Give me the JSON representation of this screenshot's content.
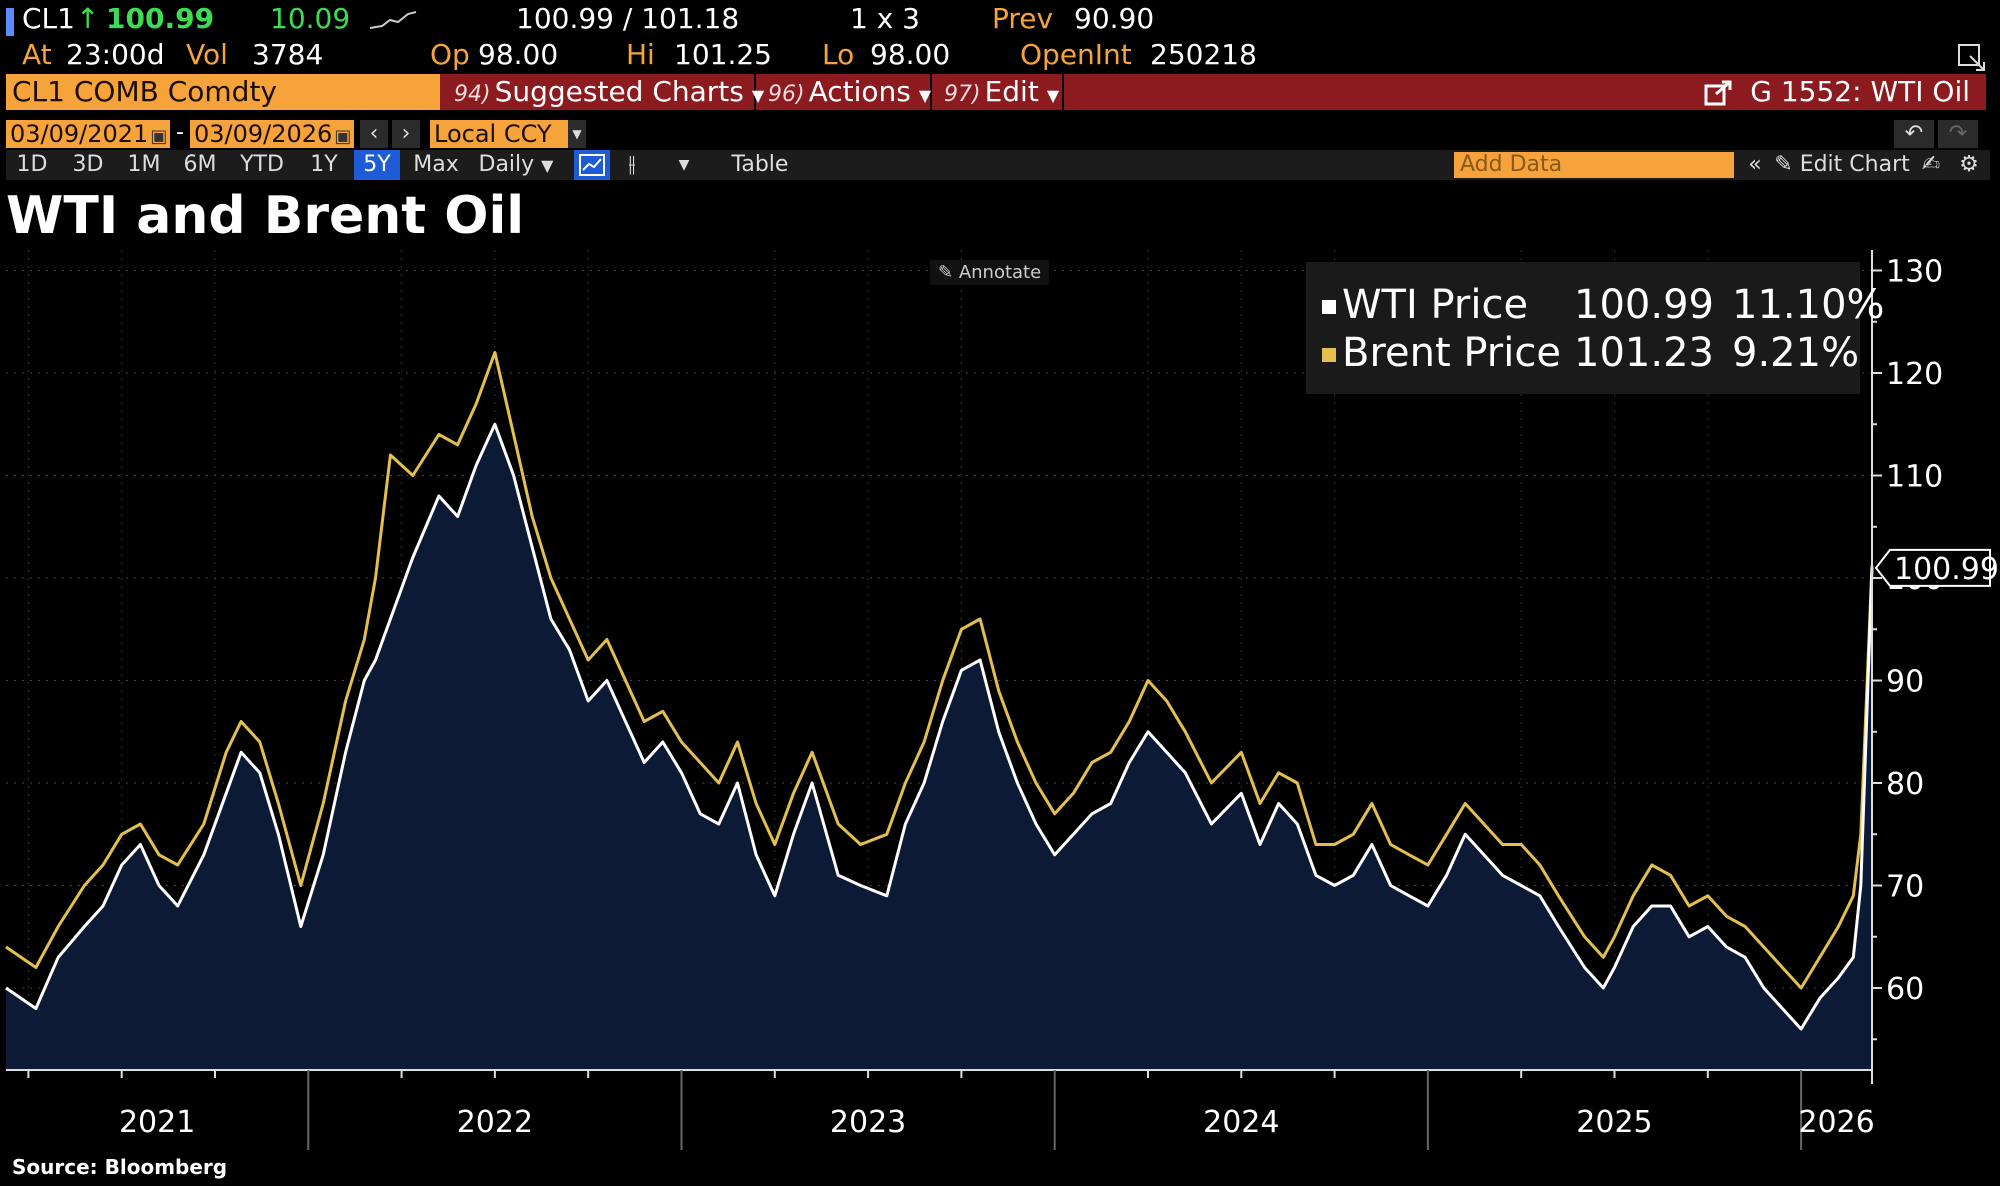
{
  "quote": {
    "ticker": "CL1",
    "arrow": "↑",
    "last": "100.99",
    "change": "10.09",
    "bid_ask": "100.99 / 101.18",
    "size": "1 x 3",
    "prev_label": "Prev",
    "prev": "90.90",
    "at_label": "At",
    "at_time": "23:00d",
    "vol_label": "Vol",
    "vol": "3784",
    "op_label": "Op",
    "op": "98.00",
    "hi_label": "Hi",
    "hi": "101.25",
    "lo_label": "Lo",
    "lo": "98.00",
    "oi_label": "OpenInt",
    "oi": "250218"
  },
  "cmdbar": {
    "security": "CL1 COMB Comdty",
    "menus": [
      {
        "num": "94)",
        "label": "Suggested Charts"
      },
      {
        "num": "96)",
        "label": "Actions"
      },
      {
        "num": "97)",
        "label": "Edit"
      }
    ],
    "chart_id": "G 1552: WTI Oil"
  },
  "dates": {
    "start": "03/09/2021",
    "end": "03/09/2026",
    "currency": "Local CCY"
  },
  "periods": [
    "1D",
    "3D",
    "1M",
    "6M",
    "YTD",
    "1Y",
    "5Y",
    "Max"
  ],
  "active_period": "5Y",
  "frequency": "Daily",
  "table_label": "Table",
  "add_data_placeholder": "Add Data",
  "edit_chart_label": "Edit Chart",
  "annotate_label": "Annotate",
  "colors": {
    "wti": "#ffffff",
    "brent": "#e3c04d",
    "area": "#0c1a36",
    "accent": "#f5a33a"
  },
  "chart_data": {
    "type": "line",
    "title": "WTI and Brent Oil",
    "source": "Source: Bloomberg",
    "xlabel": "",
    "ylabel": "",
    "ylim": [
      52,
      132
    ],
    "xlim": [
      2021.19,
      2026.19
    ],
    "yticks": [
      60,
      70,
      80,
      90,
      100,
      110,
      120,
      130
    ],
    "xticks": [
      2021,
      2022,
      2023,
      2024,
      2025,
      2026
    ],
    "last_value_label": "100.99",
    "series": [
      {
        "name": "WTI Price",
        "last": "100.99",
        "pct": "11.10%",
        "x": [
          2021.19,
          2021.27,
          2021.33,
          2021.4,
          2021.45,
          2021.5,
          2021.55,
          2021.6,
          2021.65,
          2021.72,
          2021.78,
          2021.82,
          2021.87,
          2021.92,
          2021.98,
          2022.04,
          2022.1,
          2022.15,
          2022.18,
          2022.22,
          2022.28,
          2022.35,
          2022.4,
          2022.45,
          2022.5,
          2022.55,
          2022.6,
          2022.65,
          2022.7,
          2022.75,
          2022.8,
          2022.85,
          2022.9,
          2022.95,
          2023.0,
          2023.05,
          2023.1,
          2023.15,
          2023.2,
          2023.25,
          2023.3,
          2023.35,
          2023.42,
          2023.48,
          2023.55,
          2023.6,
          2023.65,
          2023.7,
          2023.75,
          2023.8,
          2023.85,
          2023.9,
          2023.95,
          2024.0,
          2024.05,
          2024.1,
          2024.15,
          2024.2,
          2024.25,
          2024.3,
          2024.35,
          2024.42,
          2024.5,
          2024.55,
          2024.6,
          2024.65,
          2024.7,
          2024.75,
          2024.8,
          2024.85,
          2024.9,
          2024.95,
          2025.0,
          2025.05,
          2025.1,
          2025.15,
          2025.2,
          2025.25,
          2025.3,
          2025.35,
          2025.42,
          2025.47,
          2025.5,
          2025.55,
          2025.6,
          2025.65,
          2025.7,
          2025.75,
          2025.8,
          2025.85,
          2025.9,
          2025.95,
          2026.0,
          2026.05,
          2026.1,
          2026.14,
          2026.16,
          2026.19
        ],
        "values": [
          60,
          58,
          63,
          66,
          68,
          72,
          74,
          70,
          68,
          73,
          79,
          83,
          81,
          75,
          66,
          73,
          83,
          90,
          92,
          96,
          102,
          108,
          106,
          111,
          115,
          110,
          103,
          96,
          93,
          88,
          90,
          86,
          82,
          84,
          81,
          77,
          76,
          80,
          73,
          69,
          75,
          80,
          71,
          70,
          69,
          76,
          80,
          86,
          91,
          92,
          85,
          80,
          76,
          73,
          75,
          77,
          78,
          82,
          85,
          83,
          81,
          76,
          79,
          74,
          78,
          76,
          71,
          70,
          71,
          74,
          70,
          69,
          68,
          71,
          75,
          73,
          71,
          70,
          69,
          66,
          62,
          60,
          62,
          66,
          68,
          68,
          65,
          66,
          64,
          63,
          60,
          58,
          56,
          59,
          61,
          63,
          70,
          100.99
        ]
      },
      {
        "name": "Brent Price",
        "last": "101.23",
        "pct": "9.21%",
        "x": [
          2021.19,
          2021.27,
          2021.33,
          2021.4,
          2021.45,
          2021.5,
          2021.55,
          2021.6,
          2021.65,
          2021.72,
          2021.78,
          2021.82,
          2021.87,
          2021.92,
          2021.98,
          2022.04,
          2022.1,
          2022.15,
          2022.18,
          2022.22,
          2022.28,
          2022.35,
          2022.4,
          2022.45,
          2022.5,
          2022.55,
          2022.6,
          2022.65,
          2022.7,
          2022.75,
          2022.8,
          2022.85,
          2022.9,
          2022.95,
          2023.0,
          2023.05,
          2023.1,
          2023.15,
          2023.2,
          2023.25,
          2023.3,
          2023.35,
          2023.42,
          2023.48,
          2023.55,
          2023.6,
          2023.65,
          2023.7,
          2023.75,
          2023.8,
          2023.85,
          2023.9,
          2023.95,
          2024.0,
          2024.05,
          2024.1,
          2024.15,
          2024.2,
          2024.25,
          2024.3,
          2024.35,
          2024.42,
          2024.5,
          2024.55,
          2024.6,
          2024.65,
          2024.7,
          2024.75,
          2024.8,
          2024.85,
          2024.9,
          2024.95,
          2025.0,
          2025.05,
          2025.1,
          2025.15,
          2025.2,
          2025.25,
          2025.3,
          2025.35,
          2025.42,
          2025.47,
          2025.5,
          2025.55,
          2025.6,
          2025.65,
          2025.7,
          2025.75,
          2025.8,
          2025.85,
          2025.9,
          2025.95,
          2026.0,
          2026.05,
          2026.1,
          2026.14,
          2026.16,
          2026.19
        ],
        "values": [
          64,
          62,
          66,
          70,
          72,
          75,
          76,
          73,
          72,
          76,
          83,
          86,
          84,
          78,
          70,
          78,
          88,
          94,
          100,
          112,
          110,
          114,
          113,
          117,
          122,
          114,
          106,
          100,
          96,
          92,
          94,
          90,
          86,
          87,
          84,
          82,
          80,
          84,
          78,
          74,
          79,
          83,
          76,
          74,
          75,
          80,
          84,
          90,
          95,
          96,
          89,
          84,
          80,
          77,
          79,
          82,
          83,
          86,
          90,
          88,
          85,
          80,
          83,
          78,
          81,
          80,
          74,
          74,
          75,
          78,
          74,
          73,
          72,
          75,
          78,
          76,
          74,
          74,
          72,
          69,
          65,
          63,
          65,
          69,
          72,
          71,
          68,
          69,
          67,
          66,
          64,
          62,
          60,
          63,
          66,
          69,
          75,
          101.23
        ]
      }
    ]
  }
}
